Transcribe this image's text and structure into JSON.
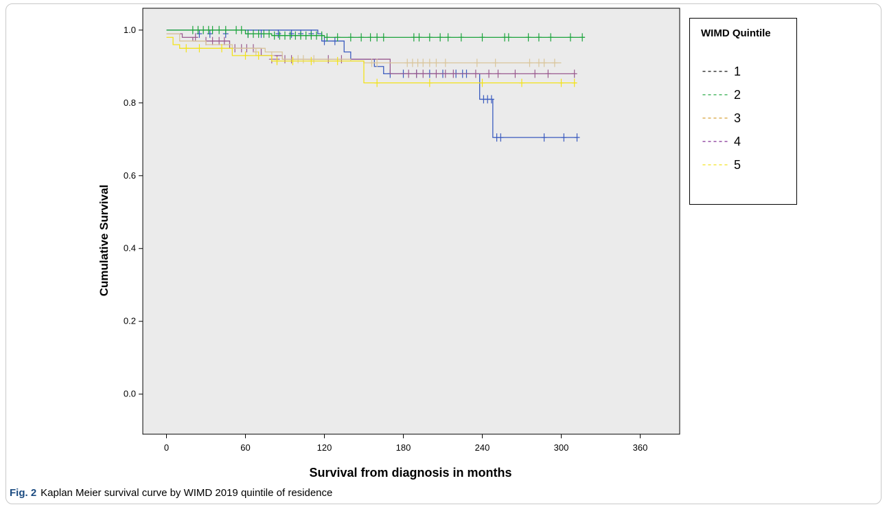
{
  "chart_data": {
    "type": "line",
    "step": true,
    "ylabel": "Cumulative Survival",
    "xlabel": "Survival from diagnosis in months",
    "xlim": [
      -18,
      390
    ],
    "ylim": [
      -0.11,
      1.06
    ],
    "xticks": [
      "0",
      "60",
      "120",
      "180",
      "240",
      "300",
      "360"
    ],
    "yticks": [
      "0.0",
      "0.2",
      "0.4",
      "0.6",
      "0.8",
      "1.0"
    ],
    "plot_background": "#ebebeb",
    "legend": {
      "title": "WIMD Quintile",
      "placement": "outside-right",
      "entries": [
        {
          "label": "1",
          "color": "#000000",
          "dash": "-----"
        },
        {
          "label": "2",
          "color": "#1aa33a",
          "dash": "-----"
        },
        {
          "label": "3",
          "color": "#d49a2a",
          "dash": "-----"
        },
        {
          "label": "4",
          "color": "#7a1f8c",
          "dash": "-----"
        },
        {
          "label": "5",
          "color": "#f2e21a",
          "dash": "-----"
        }
      ]
    },
    "series": [
      {
        "color": "#3a5bbf",
        "steps": [
          [
            0,
            1.0
          ],
          [
            115,
            0.99
          ],
          [
            118,
            0.97
          ],
          [
            135,
            0.94
          ],
          [
            140,
            0.92
          ],
          [
            158,
            0.9
          ],
          [
            165,
            0.88
          ],
          [
            238,
            0.81
          ],
          [
            248,
            0.705
          ],
          [
            312,
            0.705
          ]
        ],
        "censored": [
          [
            25,
            0.99
          ],
          [
            33,
            0.99
          ],
          [
            45,
            0.99
          ],
          [
            62,
            0.99
          ],
          [
            72,
            0.99
          ],
          [
            85,
            0.99
          ],
          [
            95,
            0.99
          ],
          [
            102,
            0.99
          ],
          [
            110,
            0.99
          ],
          [
            120,
            0.97
          ],
          [
            128,
            0.97
          ],
          [
            170,
            0.88
          ],
          [
            180,
            0.88
          ],
          [
            190,
            0.88
          ],
          [
            200,
            0.88
          ],
          [
            210,
            0.88
          ],
          [
            220,
            0.88
          ],
          [
            225,
            0.88
          ],
          [
            228,
            0.88
          ],
          [
            241,
            0.81
          ],
          [
            244,
            0.81
          ],
          [
            247,
            0.81
          ],
          [
            251,
            0.705
          ],
          [
            254,
            0.705
          ],
          [
            287,
            0.705
          ],
          [
            302,
            0.705
          ],
          [
            312,
            0.705
          ]
        ]
      },
      {
        "color": "#9a5a8f",
        "steps": [
          [
            0,
            0.99
          ],
          [
            12,
            0.98
          ],
          [
            20,
            0.97
          ],
          [
            48,
            0.95
          ],
          [
            72,
            0.93
          ],
          [
            88,
            0.92
          ],
          [
            150,
            0.92
          ],
          [
            170,
            0.88
          ],
          [
            310,
            0.88
          ]
        ],
        "censored": [
          [
            22,
            0.98
          ],
          [
            30,
            0.97
          ],
          [
            35,
            0.97
          ],
          [
            40,
            0.97
          ],
          [
            44,
            0.97
          ],
          [
            52,
            0.95
          ],
          [
            57,
            0.95
          ],
          [
            61,
            0.95
          ],
          [
            66,
            0.95
          ],
          [
            80,
            0.92
          ],
          [
            84,
            0.92
          ],
          [
            90,
            0.92
          ],
          [
            95,
            0.92
          ],
          [
            123,
            0.92
          ],
          [
            133,
            0.92
          ],
          [
            184,
            0.88
          ],
          [
            190,
            0.88
          ],
          [
            195,
            0.88
          ],
          [
            205,
            0.88
          ],
          [
            212,
            0.88
          ],
          [
            218,
            0.88
          ],
          [
            235,
            0.88
          ],
          [
            245,
            0.88
          ],
          [
            252,
            0.88
          ],
          [
            265,
            0.88
          ],
          [
            280,
            0.88
          ],
          [
            290,
            0.88
          ],
          [
            310,
            0.88
          ]
        ]
      },
      {
        "color": "#1aa33a",
        "steps": [
          [
            0,
            1.0
          ],
          [
            60,
            0.99
          ],
          [
            80,
            0.985
          ],
          [
            120,
            0.98
          ],
          [
            318,
            0.98
          ]
        ],
        "censored": [
          [
            20,
            1.0
          ],
          [
            24,
            1.0
          ],
          [
            28,
            1.0
          ],
          [
            32,
            1.0
          ],
          [
            35,
            1.0
          ],
          [
            40,
            1.0
          ],
          [
            45,
            1.0
          ],
          [
            53,
            1.0
          ],
          [
            57,
            1.0
          ],
          [
            62,
            0.99
          ],
          [
            66,
            0.99
          ],
          [
            70,
            0.99
          ],
          [
            74,
            0.99
          ],
          [
            78,
            0.99
          ],
          [
            82,
            0.985
          ],
          [
            86,
            0.985
          ],
          [
            90,
            0.985
          ],
          [
            94,
            0.985
          ],
          [
            98,
            0.985
          ],
          [
            102,
            0.985
          ],
          [
            106,
            0.985
          ],
          [
            110,
            0.985
          ],
          [
            114,
            0.985
          ],
          [
            118,
            0.985
          ],
          [
            122,
            0.98
          ],
          [
            130,
            0.98
          ],
          [
            140,
            0.98
          ],
          [
            148,
            0.98
          ],
          [
            155,
            0.98
          ],
          [
            160,
            0.98
          ],
          [
            165,
            0.98
          ],
          [
            188,
            0.98
          ],
          [
            192,
            0.98
          ],
          [
            200,
            0.98
          ],
          [
            208,
            0.98
          ],
          [
            214,
            0.98
          ],
          [
            224,
            0.98
          ],
          [
            240,
            0.98
          ],
          [
            257,
            0.98
          ],
          [
            260,
            0.98
          ],
          [
            275,
            0.98
          ],
          [
            283,
            0.98
          ],
          [
            292,
            0.98
          ],
          [
            307,
            0.98
          ],
          [
            316,
            0.98
          ]
        ]
      },
      {
        "color": "#d9c59a",
        "steps": [
          [
            0,
            0.99
          ],
          [
            10,
            0.97
          ],
          [
            30,
            0.96
          ],
          [
            50,
            0.95
          ],
          [
            75,
            0.94
          ],
          [
            88,
            0.92
          ],
          [
            112,
            0.92
          ],
          [
            140,
            0.915
          ],
          [
            150,
            0.91
          ],
          [
            300,
            0.91
          ]
        ],
        "censored": [
          [
            68,
            0.94
          ],
          [
            80,
            0.93
          ],
          [
            100,
            0.92
          ],
          [
            104,
            0.92
          ],
          [
            112,
            0.92
          ],
          [
            156,
            0.91
          ],
          [
            160,
            0.91
          ],
          [
            183,
            0.91
          ],
          [
            187,
            0.91
          ],
          [
            191,
            0.91
          ],
          [
            195,
            0.91
          ],
          [
            200,
            0.91
          ],
          [
            205,
            0.91
          ],
          [
            212,
            0.91
          ],
          [
            236,
            0.91
          ],
          [
            250,
            0.91
          ],
          [
            276,
            0.91
          ],
          [
            283,
            0.91
          ],
          [
            287,
            0.91
          ],
          [
            295,
            0.91
          ]
        ]
      },
      {
        "color": "#f2e21a",
        "steps": [
          [
            0,
            0.98
          ],
          [
            5,
            0.96
          ],
          [
            10,
            0.95
          ],
          [
            50,
            0.93
          ],
          [
            80,
            0.915
          ],
          [
            150,
            0.855
          ],
          [
            312,
            0.855
          ]
        ],
        "censored": [
          [
            15,
            0.95
          ],
          [
            25,
            0.95
          ],
          [
            42,
            0.95
          ],
          [
            60,
            0.93
          ],
          [
            70,
            0.93
          ],
          [
            84,
            0.915
          ],
          [
            96,
            0.915
          ],
          [
            110,
            0.915
          ],
          [
            130,
            0.915
          ],
          [
            160,
            0.855
          ],
          [
            200,
            0.855
          ],
          [
            240,
            0.855
          ],
          [
            270,
            0.855
          ],
          [
            300,
            0.855
          ],
          [
            310,
            0.855
          ]
        ]
      }
    ]
  },
  "caption": {
    "fig": "Fig. 2",
    "text": "Kaplan Meier survival curve by WIMD 2019 quintile of residence"
  }
}
